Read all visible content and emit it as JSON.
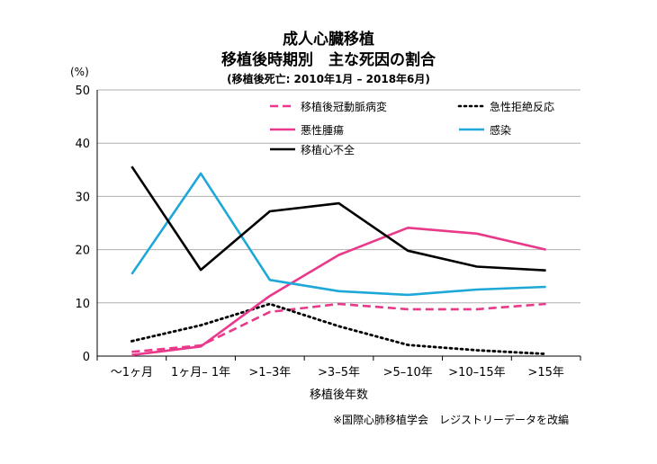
{
  "chart_data": {
    "type": "line",
    "title": "成人心臓移植",
    "subtitle_line": "移植後時期別　主な死因の割合",
    "subtitle": "(移植後死亡: 2010年1月 – 2018年6月)",
    "ylabel": "(%)",
    "xlabel": "移植後年数",
    "ylim": [
      0,
      50
    ],
    "yticks": [
      0,
      10,
      20,
      30,
      40,
      50
    ],
    "grid": true,
    "legend_placement": "top-right",
    "categories": [
      "〜1ヶ月",
      "1ヶ月– 1年",
      ">1–3年",
      ">3–5年",
      ">5–10年",
      ">10–15年",
      ">15年"
    ],
    "series": [
      {
        "name": "移植後冠動脈病変",
        "color": "#e8398a",
        "style": "dashed",
        "values": [
          0.8,
          2.0,
          8.3,
          9.8,
          8.8,
          8.8,
          9.8
        ]
      },
      {
        "name": "急性拒絶反応",
        "color": "#000000",
        "style": "dotted",
        "values": [
          2.8,
          5.8,
          9.8,
          5.6,
          2.1,
          1.1,
          0.4
        ]
      },
      {
        "name": "悪性腫瘍",
        "color": "#e8398a",
        "style": "solid",
        "values": [
          0.2,
          1.8,
          11.3,
          19.0,
          24.1,
          23.0,
          20.0
        ]
      },
      {
        "name": "感染",
        "color": "#1ea8d8",
        "style": "solid",
        "values": [
          15.4,
          34.3,
          14.3,
          12.2,
          11.5,
          12.5,
          13.0
        ]
      },
      {
        "name": "移植心不全",
        "color": "#000000",
        "style": "solid",
        "values": [
          35.6,
          16.2,
          27.2,
          28.7,
          19.8,
          16.8,
          16.1
        ]
      }
    ]
  },
  "source_note": "※国際心肺移植学会　レジストリーデータを改編"
}
